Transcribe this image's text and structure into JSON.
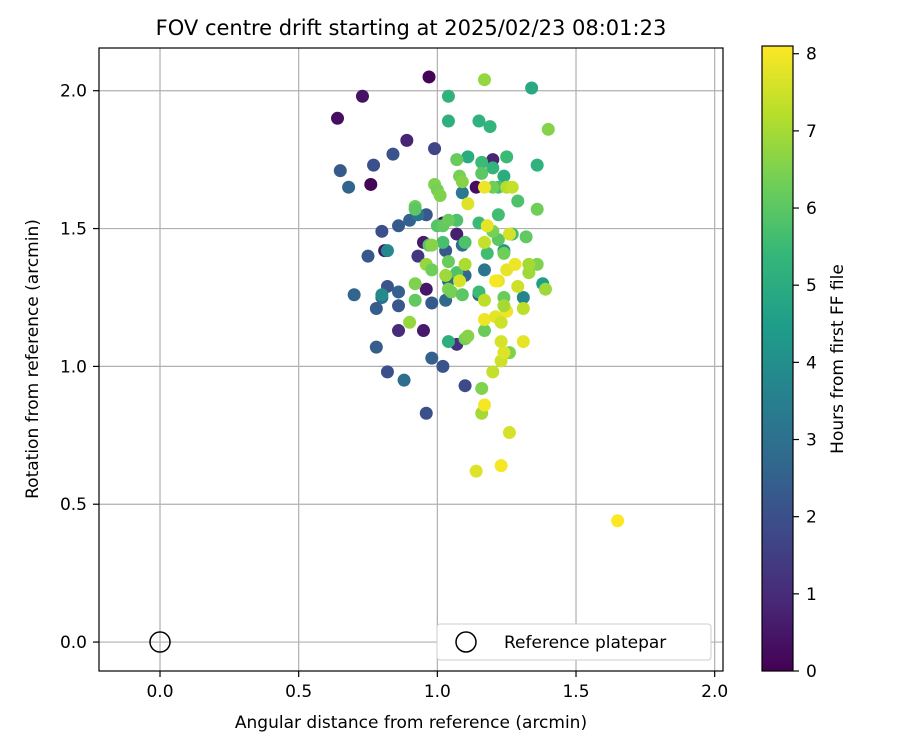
{
  "chart_data": {
    "type": "scatter",
    "title": "FOV centre drift starting at 2025/02/23 08:01:23",
    "xlabel": "Angular distance from reference (arcmin)",
    "ylabel": "Rotation from reference (arcmin)",
    "xlim": [
      -0.22,
      2.03
    ],
    "ylim": [
      -0.105,
      2.155
    ],
    "xticks": [
      "0.0",
      "0.5",
      "1.0",
      "1.5",
      "2.0"
    ],
    "yticks": [
      "0.0",
      "0.5",
      "1.0",
      "1.5",
      "2.0"
    ],
    "grid": true,
    "legend": {
      "position": "lower-right",
      "label": "Reference platepar",
      "marker": "open-circle"
    },
    "reference_point": {
      "x": 0.0,
      "y": 0.0
    },
    "colorbar": {
      "label": "Hours from first FF file",
      "colormap": "viridis",
      "range": [
        0,
        8.1
      ],
      "ticks": [
        "0",
        "1",
        "2",
        "3",
        "4",
        "5",
        "6",
        "7",
        "8"
      ]
    },
    "color_stops": [
      "#440154",
      "#482878",
      "#3e4989",
      "#31688e",
      "#26828e",
      "#1f9e89",
      "#35b779",
      "#6ece58",
      "#b5de2b",
      "#fde725"
    ],
    "series": [
      {
        "points": [
          {
            "x": 0.97,
            "y": 2.05,
            "h": 0.1
          },
          {
            "x": 0.73,
            "y": 1.98,
            "h": 0.4
          },
          {
            "x": 0.64,
            "y": 1.9,
            "h": 0.3
          },
          {
            "x": 0.89,
            "y": 1.82,
            "h": 0.8
          },
          {
            "x": 0.76,
            "y": 1.66,
            "h": 0.1
          },
          {
            "x": 1.02,
            "y": 1.52,
            "h": 0.4
          },
          {
            "x": 1.07,
            "y": 1.48,
            "h": 0.7
          },
          {
            "x": 0.95,
            "y": 1.45,
            "h": 0.6
          },
          {
            "x": 0.96,
            "y": 1.28,
            "h": 0.5
          },
          {
            "x": 0.95,
            "y": 1.13,
            "h": 0.6
          },
          {
            "x": 0.86,
            "y": 1.13,
            "h": 1.0
          },
          {
            "x": 1.07,
            "y": 1.08,
            "h": 1.1
          },
          {
            "x": 1.2,
            "y": 1.75,
            "h": 0.8
          },
          {
            "x": 1.14,
            "y": 1.65,
            "h": 0.3
          },
          {
            "x": 0.81,
            "y": 1.42,
            "h": 0.5
          },
          {
            "x": 0.93,
            "y": 1.4,
            "h": 1.3
          },
          {
            "x": 0.99,
            "y": 1.79,
            "h": 1.7
          },
          {
            "x": 0.77,
            "y": 1.73,
            "h": 2.0
          },
          {
            "x": 0.84,
            "y": 1.77,
            "h": 2.1
          },
          {
            "x": 0.65,
            "y": 1.71,
            "h": 2.3
          },
          {
            "x": 0.68,
            "y": 1.65,
            "h": 2.6
          },
          {
            "x": 0.8,
            "y": 1.49,
            "h": 2.0
          },
          {
            "x": 0.86,
            "y": 1.51,
            "h": 2.3
          },
          {
            "x": 0.9,
            "y": 1.53,
            "h": 2.5
          },
          {
            "x": 0.96,
            "y": 1.55,
            "h": 2.2
          },
          {
            "x": 0.75,
            "y": 1.4,
            "h": 2.2
          },
          {
            "x": 0.7,
            "y": 1.26,
            "h": 2.6
          },
          {
            "x": 0.82,
            "y": 1.29,
            "h": 2.1
          },
          {
            "x": 0.8,
            "y": 1.25,
            "h": 2.9
          },
          {
            "x": 0.86,
            "y": 1.27,
            "h": 2.5
          },
          {
            "x": 0.86,
            "y": 1.22,
            "h": 2.2
          },
          {
            "x": 0.78,
            "y": 1.21,
            "h": 2.4
          },
          {
            "x": 0.78,
            "y": 1.07,
            "h": 2.4
          },
          {
            "x": 0.82,
            "y": 0.98,
            "h": 2.0
          },
          {
            "x": 0.88,
            "y": 0.95,
            "h": 2.9
          },
          {
            "x": 0.96,
            "y": 0.83,
            "h": 2.0
          },
          {
            "x": 0.98,
            "y": 1.03,
            "h": 2.5
          },
          {
            "x": 1.02,
            "y": 1.0,
            "h": 2.1
          },
          {
            "x": 1.1,
            "y": 0.93,
            "h": 1.8
          },
          {
            "x": 0.98,
            "y": 1.23,
            "h": 2.3
          },
          {
            "x": 1.03,
            "y": 1.24,
            "h": 2.7
          },
          {
            "x": 1.04,
            "y": 1.31,
            "h": 2.8
          },
          {
            "x": 1.1,
            "y": 1.33,
            "h": 2.7
          },
          {
            "x": 1.15,
            "y": 1.26,
            "h": 2.6
          },
          {
            "x": 1.03,
            "y": 1.42,
            "h": 2.2
          },
          {
            "x": 1.09,
            "y": 1.44,
            "h": 2.9
          },
          {
            "x": 1.17,
            "y": 1.35,
            "h": 3.2
          },
          {
            "x": 1.09,
            "y": 1.63,
            "h": 3.3
          },
          {
            "x": 1.31,
            "y": 1.25,
            "h": 3.7
          },
          {
            "x": 0.8,
            "y": 1.26,
            "h": 3.9
          },
          {
            "x": 0.82,
            "y": 1.42,
            "h": 3.8
          },
          {
            "x": 0.93,
            "y": 1.55,
            "h": 3.2
          },
          {
            "x": 1.38,
            "y": 1.3,
            "h": 4.5
          },
          {
            "x": 1.24,
            "y": 1.42,
            "h": 4.3
          },
          {
            "x": 1.34,
            "y": 2.01,
            "h": 4.9
          },
          {
            "x": 1.04,
            "y": 1.98,
            "h": 5.2
          },
          {
            "x": 1.19,
            "y": 1.87,
            "h": 5.3
          },
          {
            "x": 1.15,
            "y": 1.89,
            "h": 5.2
          },
          {
            "x": 1.04,
            "y": 1.89,
            "h": 5.1
          },
          {
            "x": 1.11,
            "y": 1.76,
            "h": 5.0
          },
          {
            "x": 1.16,
            "y": 1.74,
            "h": 5.5
          },
          {
            "x": 1.25,
            "y": 1.76,
            "h": 5.5
          },
          {
            "x": 1.36,
            "y": 1.73,
            "h": 5.2
          },
          {
            "x": 1.2,
            "y": 1.72,
            "h": 5.3
          },
          {
            "x": 1.24,
            "y": 1.69,
            "h": 5.0
          },
          {
            "x": 1.22,
            "y": 1.65,
            "h": 5.7
          },
          {
            "x": 1.15,
            "y": 1.52,
            "h": 5.5
          },
          {
            "x": 1.22,
            "y": 1.55,
            "h": 5.6
          },
          {
            "x": 1.29,
            "y": 1.6,
            "h": 5.8
          },
          {
            "x": 1.07,
            "y": 1.53,
            "h": 5.8
          },
          {
            "x": 1.0,
            "y": 1.51,
            "h": 5.9
          },
          {
            "x": 1.04,
            "y": 1.09,
            "h": 5.1
          },
          {
            "x": 1.22,
            "y": 1.46,
            "h": 6.0
          },
          {
            "x": 1.18,
            "y": 1.41,
            "h": 5.6
          },
          {
            "x": 1.27,
            "y": 1.48,
            "h": 5.6
          },
          {
            "x": 1.32,
            "y": 1.47,
            "h": 6.1
          },
          {
            "x": 1.1,
            "y": 1.45,
            "h": 5.8
          },
          {
            "x": 1.02,
            "y": 1.45,
            "h": 5.7
          },
          {
            "x": 0.97,
            "y": 1.44,
            "h": 6.0
          },
          {
            "x": 1.04,
            "y": 1.38,
            "h": 6.2
          },
          {
            "x": 1.07,
            "y": 1.34,
            "h": 5.8
          },
          {
            "x": 1.15,
            "y": 1.27,
            "h": 5.5
          },
          {
            "x": 1.24,
            "y": 1.25,
            "h": 6.2
          },
          {
            "x": 1.36,
            "y": 1.57,
            "h": 6.3
          },
          {
            "x": 1.4,
            "y": 1.86,
            "h": 6.6
          },
          {
            "x": 1.17,
            "y": 2.04,
            "h": 6.8
          },
          {
            "x": 1.07,
            "y": 1.75,
            "h": 6.2
          },
          {
            "x": 1.08,
            "y": 1.69,
            "h": 6.4
          },
          {
            "x": 1.09,
            "y": 1.67,
            "h": 6.6
          },
          {
            "x": 1.2,
            "y": 1.65,
            "h": 6.3
          },
          {
            "x": 1.16,
            "y": 1.7,
            "h": 6.0
          },
          {
            "x": 0.99,
            "y": 1.66,
            "h": 6.5
          },
          {
            "x": 1.0,
            "y": 1.64,
            "h": 6.4
          },
          {
            "x": 1.01,
            "y": 1.62,
            "h": 6.5
          },
          {
            "x": 0.92,
            "y": 1.58,
            "h": 6.3
          },
          {
            "x": 0.92,
            "y": 1.57,
            "h": 6.0
          },
          {
            "x": 1.02,
            "y": 1.51,
            "h": 6.1
          },
          {
            "x": 1.04,
            "y": 1.53,
            "h": 6.2
          },
          {
            "x": 1.2,
            "y": 1.49,
            "h": 6.4
          },
          {
            "x": 1.24,
            "y": 1.41,
            "h": 6.3
          },
          {
            "x": 0.98,
            "y": 1.44,
            "h": 6.6
          },
          {
            "x": 0.96,
            "y": 1.37,
            "h": 6.8
          },
          {
            "x": 0.98,
            "y": 1.35,
            "h": 6.3
          },
          {
            "x": 1.03,
            "y": 1.33,
            "h": 6.9
          },
          {
            "x": 1.04,
            "y": 1.28,
            "h": 6.5
          },
          {
            "x": 1.05,
            "y": 1.27,
            "h": 6.4
          },
          {
            "x": 1.09,
            "y": 1.26,
            "h": 6.0
          },
          {
            "x": 0.92,
            "y": 1.3,
            "h": 6.5
          },
          {
            "x": 0.92,
            "y": 1.24,
            "h": 6.1
          },
          {
            "x": 0.9,
            "y": 1.16,
            "h": 6.8
          },
          {
            "x": 1.1,
            "y": 1.1,
            "h": 6.4
          },
          {
            "x": 1.11,
            "y": 1.11,
            "h": 6.6
          },
          {
            "x": 1.17,
            "y": 1.13,
            "h": 6.2
          },
          {
            "x": 1.16,
            "y": 0.92,
            "h": 6.5
          },
          {
            "x": 1.16,
            "y": 0.83,
            "h": 7.0
          },
          {
            "x": 1.26,
            "y": 1.05,
            "h": 6.5
          },
          {
            "x": 1.33,
            "y": 1.34,
            "h": 6.9
          },
          {
            "x": 1.31,
            "y": 1.21,
            "h": 7.3
          },
          {
            "x": 1.39,
            "y": 1.28,
            "h": 6.9
          },
          {
            "x": 1.36,
            "y": 1.37,
            "h": 6.5
          },
          {
            "x": 1.33,
            "y": 1.37,
            "h": 7.0
          },
          {
            "x": 1.17,
            "y": 1.45,
            "h": 7.4
          },
          {
            "x": 1.17,
            "y": 1.24,
            "h": 7.3
          },
          {
            "x": 1.25,
            "y": 1.65,
            "h": 7.2
          },
          {
            "x": 1.1,
            "y": 1.37,
            "h": 7.1
          },
          {
            "x": 1.08,
            "y": 1.31,
            "h": 7.6
          },
          {
            "x": 1.11,
            "y": 1.59,
            "h": 7.7
          },
          {
            "x": 1.17,
            "y": 1.65,
            "h": 7.9
          },
          {
            "x": 1.18,
            "y": 1.51,
            "h": 7.8
          },
          {
            "x": 1.26,
            "y": 1.48,
            "h": 7.6
          },
          {
            "x": 1.25,
            "y": 1.35,
            "h": 7.8
          },
          {
            "x": 1.28,
            "y": 1.37,
            "h": 7.9
          },
          {
            "x": 1.22,
            "y": 1.31,
            "h": 7.8
          },
          {
            "x": 1.29,
            "y": 1.29,
            "h": 7.5
          },
          {
            "x": 1.21,
            "y": 1.31,
            "h": 8.0
          },
          {
            "x": 1.17,
            "y": 1.17,
            "h": 7.9
          },
          {
            "x": 1.21,
            "y": 1.18,
            "h": 7.8
          },
          {
            "x": 1.23,
            "y": 1.16,
            "h": 7.5
          },
          {
            "x": 1.25,
            "y": 1.2,
            "h": 7.9
          },
          {
            "x": 1.23,
            "y": 1.09,
            "h": 7.6
          },
          {
            "x": 1.23,
            "y": 1.02,
            "h": 7.5
          },
          {
            "x": 1.24,
            "y": 1.05,
            "h": 7.7
          },
          {
            "x": 1.2,
            "y": 0.98,
            "h": 7.4
          },
          {
            "x": 1.31,
            "y": 1.09,
            "h": 7.8
          },
          {
            "x": 1.17,
            "y": 0.86,
            "h": 8.0
          },
          {
            "x": 1.26,
            "y": 0.76,
            "h": 7.6
          },
          {
            "x": 1.14,
            "y": 0.62,
            "h": 7.7
          },
          {
            "x": 1.23,
            "y": 0.64,
            "h": 8.0
          },
          {
            "x": 1.65,
            "y": 0.44,
            "h": 8.1
          },
          {
            "x": 1.27,
            "y": 1.65,
            "h": 7.4
          },
          {
            "x": 1.24,
            "y": 1.22,
            "h": 7.0
          }
        ]
      }
    ]
  }
}
